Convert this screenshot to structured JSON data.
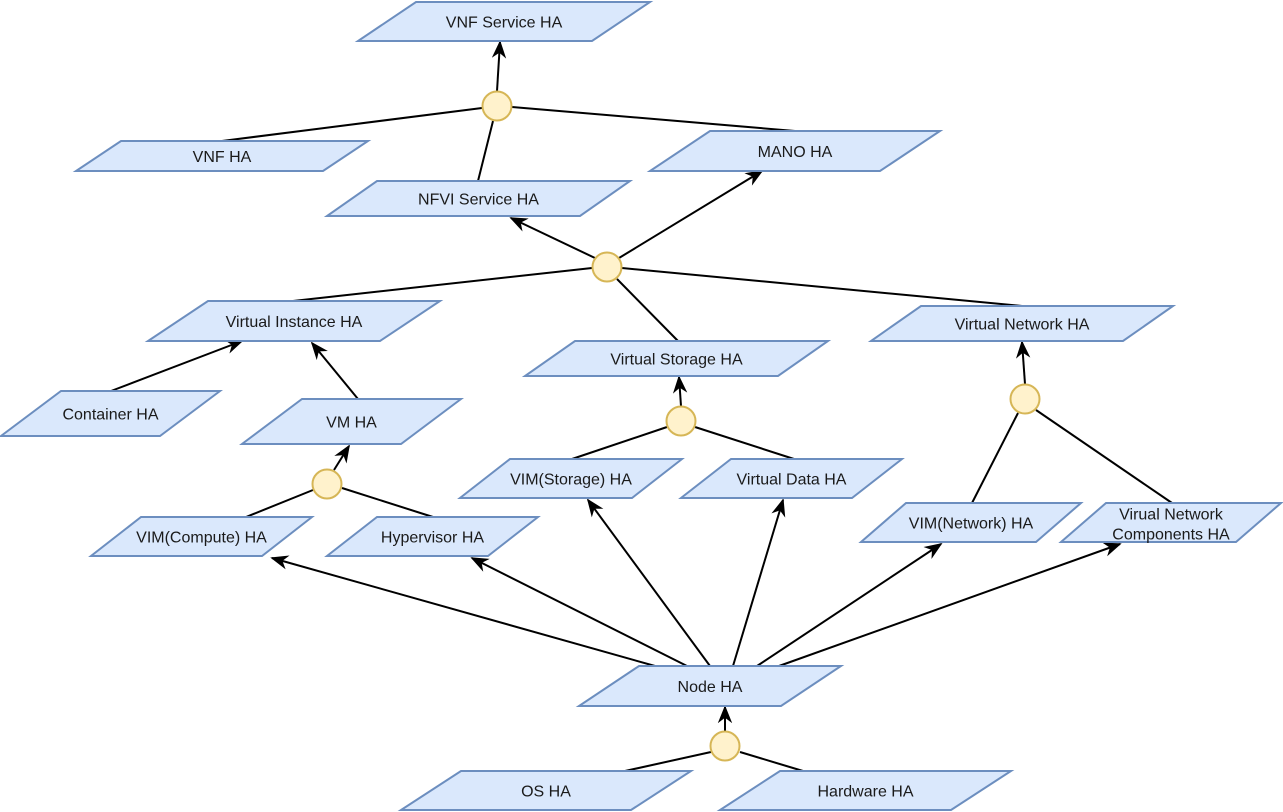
{
  "colors": {
    "node_fill": "#dae8fc",
    "node_stroke": "#6c8ebf",
    "junction_fill": "#fff2cc",
    "junction_stroke": "#d6b656",
    "edge": "#000000"
  },
  "nodes": [
    {
      "id": "vnf-service-ha",
      "label": "VNF Service HA"
    },
    {
      "id": "vnf-ha",
      "label": "VNF HA"
    },
    {
      "id": "mano-ha",
      "label": "MANO HA"
    },
    {
      "id": "nfvi-service-ha",
      "label": "NFVI Service HA"
    },
    {
      "id": "virtual-instance-ha",
      "label": "Virtual Instance HA"
    },
    {
      "id": "virtual-storage-ha",
      "label": "Virtual Storage HA"
    },
    {
      "id": "virtual-network-ha",
      "label": "Virtual Network HA"
    },
    {
      "id": "container-ha",
      "label": "Container HA"
    },
    {
      "id": "vm-ha",
      "label": "VM HA"
    },
    {
      "id": "vim-storage-ha",
      "label": "VIM(Storage) HA"
    },
    {
      "id": "virtual-data-ha",
      "label": "Virtual Data HA"
    },
    {
      "id": "vim-compute-ha",
      "label": "VIM(Compute) HA"
    },
    {
      "id": "hypervisor-ha",
      "label": "Hypervisor HA"
    },
    {
      "id": "vim-network-ha",
      "label": "VIM(Network) HA"
    },
    {
      "id": "virual-network-components-ha",
      "label": "Virual Network Components HA",
      "lines": [
        "Virual Network",
        "Components HA"
      ]
    },
    {
      "id": "node-ha",
      "label": "Node HA"
    },
    {
      "id": "os-ha",
      "label": "OS HA"
    },
    {
      "id": "hardware-ha",
      "label": "Hardware HA"
    }
  ]
}
